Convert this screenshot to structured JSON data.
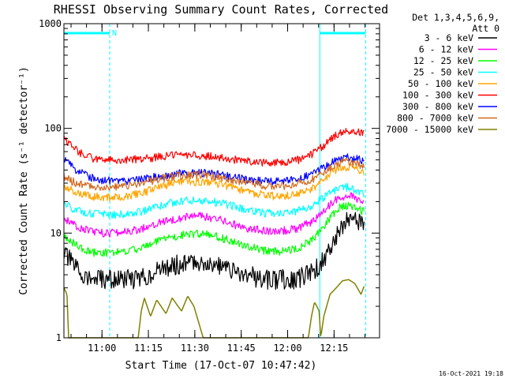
{
  "chart_data": {
    "type": "line",
    "title": "RHESSI Observing Summary Count Rates, Corrected",
    "xlabel": "Start Time (17-Oct-07 10:47:42)",
    "ylabel": "Corrected Count Rate (s⁻¹ detector⁻¹)",
    "yscale": "log",
    "ylim": [
      1,
      1000
    ],
    "xlim_minutes_after_start": [
      0,
      102
    ],
    "x_ticks": [
      "11:00",
      "11:15",
      "11:30",
      "11:45",
      "12:00",
      "12:15"
    ],
    "x_tick_minutes": [
      12.3,
      27.3,
      42.3,
      57.3,
      72.3,
      87.3
    ],
    "y_ticks": [
      "1",
      "10",
      "100",
      "1000"
    ],
    "y_tick_values": [
      1,
      10,
      100,
      1000
    ],
    "legend_header": [
      "Det 1,3,4,5,6,9,",
      "Att 0"
    ],
    "legend_placement": "right",
    "timestamp": "16-Oct-2021 19:18",
    "night_marker_label": "N",
    "night_intervals_minutes": [
      [
        0,
        14.8
      ],
      [
        82.7,
        97.5
      ]
    ],
    "series": [
      {
        "name": "3 - 6 keV",
        "color": "#000000",
        "x": [
          0,
          3,
          6,
          9,
          12,
          15,
          20,
          25,
          30,
          35,
          40,
          45,
          50,
          55,
          60,
          65,
          70,
          75,
          80,
          83,
          86,
          89,
          92,
          95,
          97
        ],
        "y": [
          6.5,
          5,
          4,
          3.6,
          3.6,
          3.6,
          3.6,
          3.7,
          4.3,
          4.9,
          5.2,
          5.3,
          4.9,
          4.3,
          3.9,
          3.6,
          3.6,
          3.6,
          4.2,
          5,
          7.3,
          11,
          13.5,
          12.8,
          11.5
        ]
      },
      {
        "name": "6 - 12 keV",
        "color": "#ff00ff",
        "x": [
          0,
          3,
          6,
          9,
          12,
          15,
          20,
          25,
          30,
          35,
          40,
          45,
          50,
          55,
          60,
          65,
          70,
          75,
          80,
          83,
          86,
          89,
          92,
          95,
          97
        ],
        "y": [
          14,
          12,
          11,
          10.5,
          10,
          10,
          10.3,
          11,
          12.5,
          13.5,
          14.5,
          14.5,
          13.5,
          12,
          11,
          10.5,
          10.5,
          11,
          12.8,
          15,
          18.5,
          22,
          23,
          21,
          19.5
        ]
      },
      {
        "name": "12 - 25 keV",
        "color": "#00ff00",
        "x": [
          0,
          3,
          6,
          9,
          12,
          15,
          20,
          25,
          30,
          35,
          40,
          45,
          50,
          55,
          60,
          65,
          70,
          75,
          80,
          83,
          86,
          89,
          92,
          95,
          97
        ],
        "y": [
          9.5,
          8,
          7,
          6.5,
          6.5,
          6.5,
          6.7,
          7.2,
          8.3,
          9.2,
          9.8,
          9.8,
          9.2,
          8.2,
          7.4,
          6.8,
          6.7,
          7,
          8.5,
          10.5,
          14,
          17.5,
          18.5,
          17,
          16
        ]
      },
      {
        "name": "25 - 50 keV",
        "color": "#00ffff",
        "x": [
          0,
          3,
          6,
          9,
          12,
          15,
          20,
          25,
          30,
          35,
          40,
          45,
          50,
          55,
          60,
          65,
          70,
          75,
          80,
          83,
          86,
          89,
          92,
          95,
          97
        ],
        "y": [
          19,
          17,
          16,
          15.5,
          15,
          15,
          15.3,
          16,
          18,
          19.5,
          20.5,
          20.5,
          19.5,
          18,
          16.5,
          15.5,
          15.5,
          16,
          18,
          21,
          24.5,
          27,
          27.5,
          25,
          23
        ]
      },
      {
        "name": "50 - 100 keV",
        "color": "#ffa500",
        "x": [
          0,
          3,
          6,
          9,
          12,
          15,
          20,
          25,
          30,
          35,
          40,
          45,
          50,
          55,
          60,
          65,
          70,
          75,
          80,
          83,
          86,
          89,
          92,
          95,
          97
        ],
        "y": [
          28,
          25,
          23.5,
          22.5,
          22,
          22,
          22.5,
          24,
          27,
          29.5,
          31,
          31,
          29.5,
          27,
          24.5,
          23,
          22.5,
          23.5,
          26.5,
          31,
          37,
          42,
          43,
          40,
          37.5
        ]
      },
      {
        "name": "100 - 300 keV",
        "color": "#ff0000",
        "x": [
          0,
          3,
          6,
          9,
          12,
          15,
          20,
          25,
          30,
          35,
          40,
          45,
          50,
          55,
          60,
          65,
          70,
          75,
          80,
          83,
          86,
          89,
          92,
          95,
          97
        ],
        "y": [
          82,
          65,
          57,
          52,
          50,
          49.5,
          50,
          51,
          53,
          55,
          56,
          55,
          53,
          50,
          48,
          47,
          47.5,
          49,
          56,
          65,
          78,
          90,
          96,
          93,
          88
        ]
      },
      {
        "name": "300 - 800 keV",
        "color": "#0000ff",
        "x": [
          0,
          3,
          6,
          9,
          12,
          15,
          20,
          25,
          30,
          35,
          40,
          45,
          50,
          55,
          60,
          65,
          70,
          75,
          80,
          83,
          86,
          89,
          92,
          95,
          97
        ],
        "y": [
          50,
          42,
          37,
          34,
          32,
          31.5,
          31.5,
          32.5,
          34.5,
          36.5,
          37.5,
          37.5,
          36,
          34,
          32,
          31,
          31,
          32,
          36.5,
          41,
          46,
          51,
          53,
          51,
          48
        ]
      },
      {
        "name": "800 - 7000 keV",
        "color": "#d2691e",
        "x": [
          0,
          3,
          6,
          9,
          12,
          15,
          20,
          25,
          30,
          35,
          40,
          45,
          50,
          55,
          60,
          65,
          70,
          75,
          80,
          83,
          86,
          89,
          92,
          95,
          97
        ],
        "y": [
          35,
          31,
          29,
          28,
          27.5,
          27.5,
          28,
          30,
          32.5,
          34.5,
          36,
          36,
          34.5,
          32,
          30,
          28.5,
          28,
          29,
          32.5,
          37,
          42.5,
          47,
          48.5,
          45,
          42
        ]
      },
      {
        "name": "7000 - 15000 keV",
        "color": "#808000",
        "x": [
          0,
          1,
          1.5,
          3,
          5,
          7,
          12,
          24,
          25,
          26,
          28,
          30,
          33,
          35,
          38,
          40,
          42,
          45,
          50,
          55,
          60,
          64,
          70,
          75,
          79,
          80,
          81,
          82.5,
          83,
          84,
          86,
          88,
          90,
          92,
          94,
          96,
          97
        ],
        "y": [
          3,
          2.6,
          1,
          1,
          1,
          1,
          1,
          1,
          1.8,
          2.4,
          1.6,
          2.3,
          1.7,
          2.4,
          1.8,
          2.5,
          2,
          1,
          1,
          1,
          1,
          1,
          1,
          1,
          1,
          1.6,
          2.2,
          1.8,
          1,
          1.6,
          2.6,
          3,
          3.5,
          3.6,
          3.3,
          2.6,
          3.1
        ]
      }
    ]
  }
}
